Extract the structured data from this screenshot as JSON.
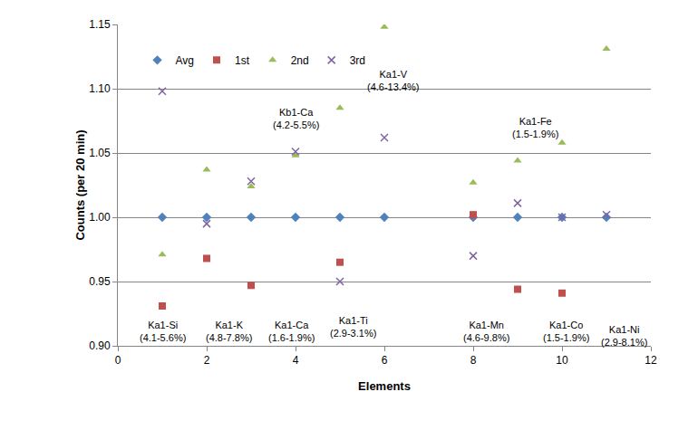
{
  "chart_data": {
    "type": "scatter",
    "x_label": "Elements",
    "y_label": "Counts (per 20 min)",
    "xlim": [
      0,
      12
    ],
    "xticks": [
      0,
      2,
      4,
      6,
      8,
      10,
      12
    ],
    "ylim": [
      0.9,
      1.15
    ],
    "yticks": [
      {
        "value": 0.9,
        "label": "0.90"
      },
      0.95,
      {
        "value": 1,
        "label": "1.00"
      },
      1.05,
      {
        "value": 1.1,
        "label": "1.10"
      },
      1.15
    ],
    "grid": true,
    "legend": "top left",
    "series": [
      {
        "name": "Avg",
        "color": "#4f81bd",
        "marker": "diamond",
        "x": [
          1,
          2,
          3,
          4,
          5,
          6,
          8,
          9,
          10,
          11
        ],
        "values": [
          1.0,
          1.0,
          1.0,
          1.0,
          1.0,
          1.0,
          1.0,
          1.0,
          1.0,
          1.0
        ]
      },
      {
        "name": "1st",
        "color": "#c0504d",
        "marker": "square",
        "x": [
          1,
          2,
          3,
          5,
          8,
          9,
          10
        ],
        "values": [
          0.931,
          0.968,
          0.947,
          0.965,
          1.002,
          0.944,
          0.941
        ]
      },
      {
        "name": "2nd",
        "color": "#9bbb59",
        "marker": "triangle",
        "x": [
          1,
          2,
          3,
          4,
          5,
          6,
          8,
          9,
          10,
          11
        ],
        "values": [
          0.971,
          1.037,
          1.024,
          1.048,
          1.085,
          1.148,
          1.027,
          1.044,
          1.058,
          1.131
        ]
      },
      {
        "name": "3rd",
        "color": "#8064a2",
        "marker": "x",
        "x": [
          1,
          2,
          3,
          4,
          5,
          6,
          8,
          9,
          10,
          11
        ],
        "values": [
          1.098,
          0.995,
          1.028,
          1.051,
          0.95,
          1.062,
          0.97,
          1.011,
          1.0,
          1.002
        ]
      }
    ],
    "annotations": [
      {
        "lines": [
          "Ka1-Si",
          "(4.1-5.6%)"
        ],
        "x": 1.0,
        "y": 0.911
      },
      {
        "lines": [
          "Ka1-K",
          "(4.8-7.8%)"
        ],
        "x": 2.5,
        "y": 0.911
      },
      {
        "lines": [
          "Ka1-Ca",
          "(1.6-1.9%)"
        ],
        "x": 3.9,
        "y": 0.911
      },
      {
        "lines": [
          "Kb1-Ca",
          "(4.2-5.5%)"
        ],
        "x": 4.0,
        "y": 1.077
      },
      {
        "lines": [
          "Ka1-Ti",
          "(2.9-3.1%)"
        ],
        "x": 5.3,
        "y": 0.915
      },
      {
        "lines": [
          "Ka1-V",
          "(4.6-13.4%)"
        ],
        "x": 6.2,
        "y": 1.106
      },
      {
        "lines": [
          "Ka1-Fe",
          "(1.5-1.9%)"
        ],
        "x": 9.4,
        "y": 1.07
      },
      {
        "lines": [
          "Ka1-Mn",
          "(4.6-9.8%)"
        ],
        "x": 8.3,
        "y": 0.911
      },
      {
        "lines": [
          "Ka1-Co",
          "(1.5-1.9%)"
        ],
        "x": 10.1,
        "y": 0.911
      },
      {
        "lines": [
          "Ka1-Ni",
          "(2.9-8.1%)"
        ],
        "x": 11.4,
        "y": 0.908
      }
    ]
  }
}
